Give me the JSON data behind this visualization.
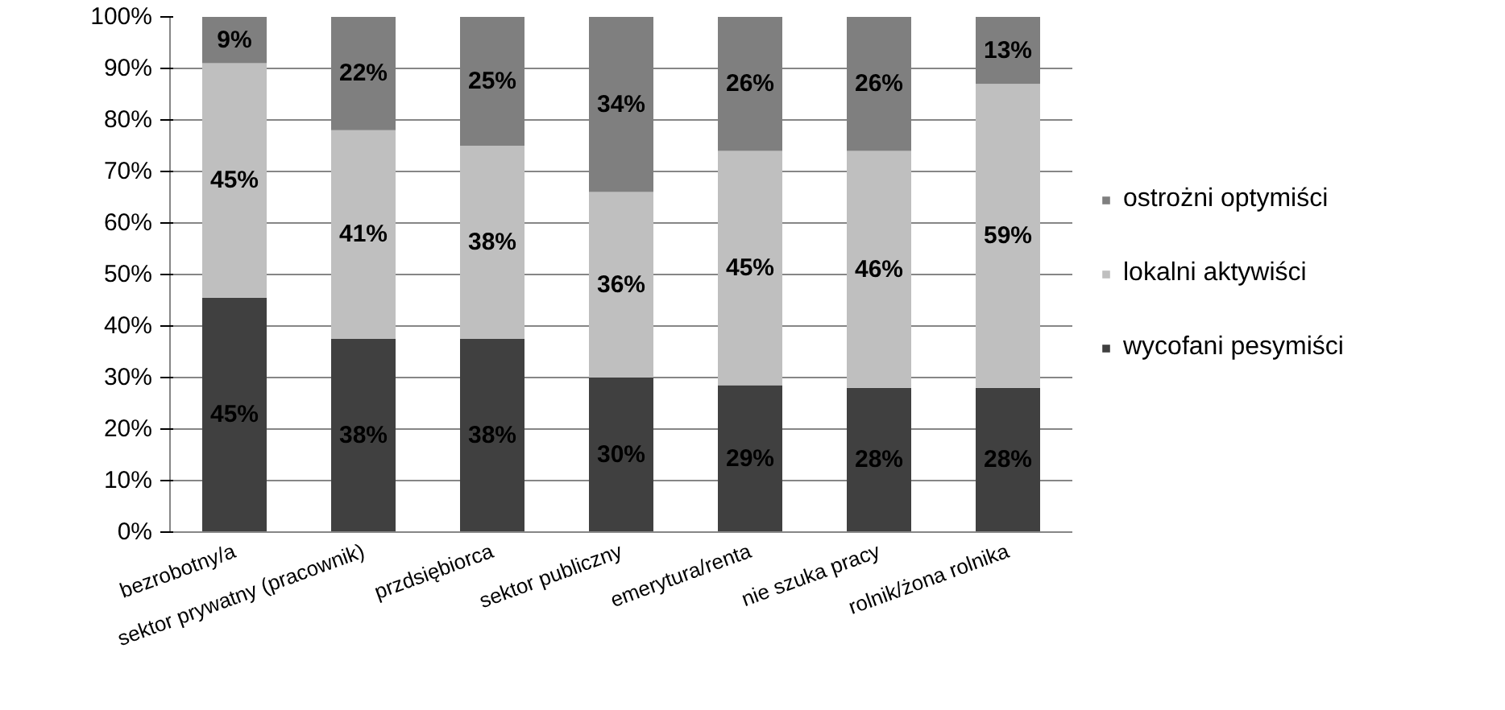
{
  "chart_data": {
    "type": "bar",
    "stacked": true,
    "categories": [
      "bezrobotny/a",
      "sektor prywatny (pracownik)",
      "przdsiębiorca",
      "sektor publiczny",
      "emerytura/renta",
      "nie szuka pracy",
      "rolnik/żona rolnika"
    ],
    "series": [
      {
        "name": "wycofani pesymiści",
        "color": "#404040",
        "values": [
          45.5,
          37.5,
          37.5,
          30,
          28.5,
          28,
          28
        ],
        "value_labels": [
          "45%",
          "38%",
          "38%",
          "30%",
          "29%",
          "28%",
          "28%"
        ]
      },
      {
        "name": "lokalni aktywiści",
        "color": "#bfbfbf",
        "values": [
          45.5,
          40.5,
          37.5,
          36,
          45.5,
          46,
          59
        ],
        "value_labels": [
          "45%",
          "41%",
          "38%",
          "36%",
          "45%",
          "46%",
          "59%"
        ]
      },
      {
        "name": "ostrożni optymiści",
        "color": "#7f7f7f",
        "values": [
          9,
          22,
          25,
          34,
          26,
          26,
          13
        ],
        "value_labels": [
          "9%",
          "22%",
          "25%",
          "34%",
          "26%",
          "26%",
          "13%"
        ]
      }
    ],
    "ylim": [
      0,
      100
    ],
    "yticks": [
      {
        "value": 0,
        "label": "0%"
      },
      {
        "value": 10,
        "label": "10%"
      },
      {
        "value": 20,
        "label": "20%"
      },
      {
        "value": 30,
        "label": "30%"
      },
      {
        "value": 40,
        "label": "40%"
      },
      {
        "value": 50,
        "label": "50%"
      },
      {
        "value": 60,
        "label": "60%"
      },
      {
        "value": 70,
        "label": "70%"
      },
      {
        "value": 80,
        "label": "80%"
      },
      {
        "value": 90,
        "label": "90%"
      },
      {
        "value": 100,
        "label": "100%"
      }
    ],
    "grid": "y",
    "legend": "right"
  }
}
